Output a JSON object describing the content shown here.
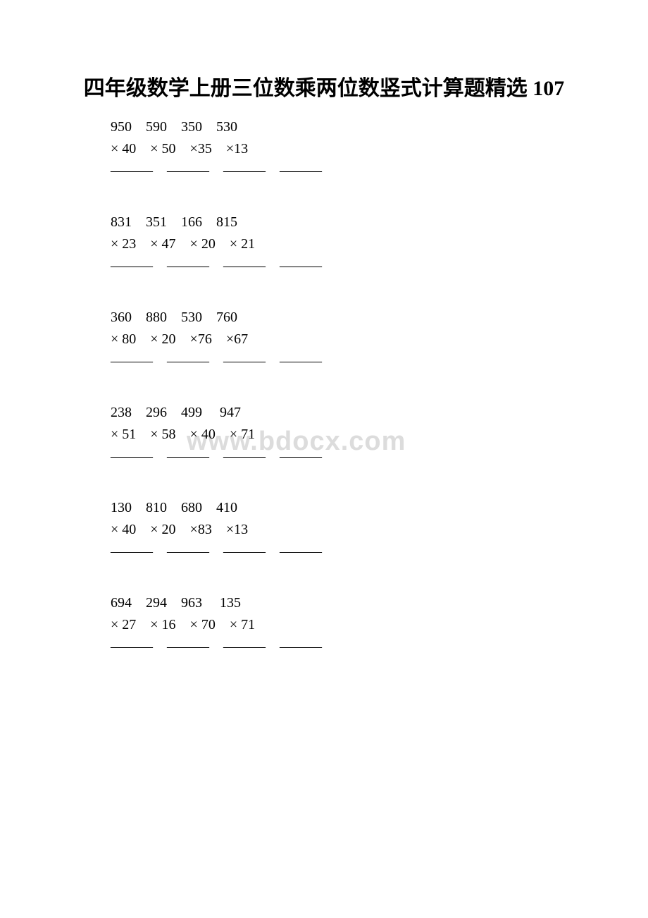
{
  "title": "四年级数学上册三位数乘两位数竖式计算题精选 107",
  "watermark": "www.bdocx.com",
  "text_color": "#000000",
  "watermark_color": "#dcdcdc",
  "background_color": "#ffffff",
  "title_fontsize": 30,
  "body_fontsize": 20,
  "groups": [
    {
      "operands_line": "950　590　350　530",
      "multipliers_line": "× 40　× 50　×35　×13",
      "divider_line": "———　———　———　———"
    },
    {
      "operands_line": "831　351　166　815",
      "multipliers_line": "× 23　× 47　× 20　× 21",
      "divider_line": "———　———　———　———"
    },
    {
      "operands_line": "360　880　530　760",
      "multipliers_line": "× 80　× 20　×76　×67",
      "divider_line": "———　———　———　———"
    },
    {
      "operands_line": "238　296　499　 947",
      "multipliers_line": "× 51　× 58　× 40　× 71",
      "divider_line": "———　———　———　———"
    },
    {
      "operands_line": "130　810　680　410",
      "multipliers_line": "× 40　× 20　×83　×13",
      "divider_line": "———　———　———　———"
    },
    {
      "operands_line": "694　294　963　 135",
      "multipliers_line": "× 27　× 16　× 70　× 71",
      "divider_line": "———　———　———　———"
    }
  ]
}
